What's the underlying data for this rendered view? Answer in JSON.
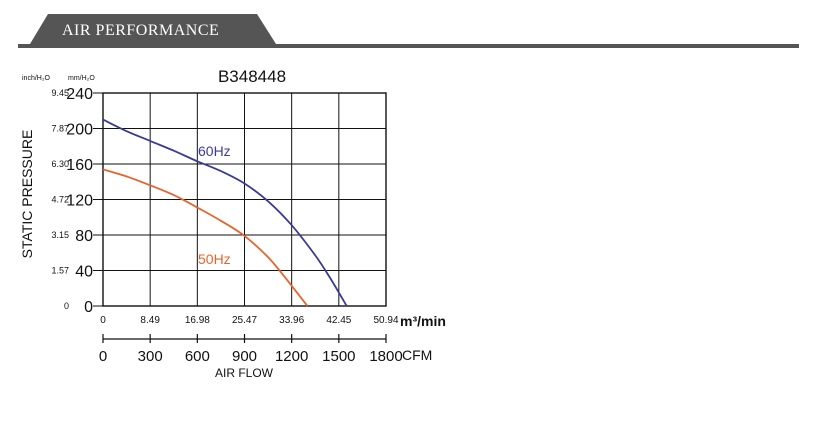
{
  "header": {
    "title": "AIR PERFORMANCE",
    "color": "#555555"
  },
  "chart_data": {
    "type": "line",
    "title": "B348448",
    "ylabel": "STATIC PRESSURE",
    "y_units": [
      "inch/H₂O",
      "mm/H₂O"
    ],
    "y_ticks_mm": [
      "240",
      "200",
      "160",
      "120",
      "80",
      "40",
      "0"
    ],
    "y_ticks_inch": [
      "9.45",
      "7.87",
      "6.30",
      "4.72",
      "3.15",
      "1.57",
      "0"
    ],
    "ylim_mm": [
      0,
      240
    ],
    "x_ticks_m3min": [
      "0",
      "8.49",
      "16.98",
      "25.47",
      "33.96",
      "42.45",
      "50.94"
    ],
    "x_unit_m3min": "m³/min",
    "xlim_cfm": [
      0,
      1800
    ],
    "x_ticks_cfm": [
      "0",
      "300",
      "600",
      "900",
      "1200",
      "1500",
      "1800"
    ],
    "x_unit_cfm": "CFM",
    "xlabel": "AIR FLOW",
    "grid": true,
    "series": [
      {
        "name": "60Hz",
        "color": "#3a3a9a",
        "x": [
          0,
          150,
          300,
          450,
          600,
          750,
          900,
          1050,
          1200,
          1350,
          1450,
          1550
        ],
        "y": [
          210,
          197,
          186,
          175,
          163,
          152,
          138,
          118,
          91,
          57,
          30,
          0
        ]
      },
      {
        "name": "50Hz",
        "color": "#e8642a",
        "x": [
          0,
          150,
          300,
          450,
          600,
          750,
          900,
          1050,
          1150,
          1230,
          1300
        ],
        "y": [
          154,
          146,
          136,
          125,
          111,
          96,
          79,
          55,
          34,
          16,
          0
        ]
      }
    ]
  }
}
